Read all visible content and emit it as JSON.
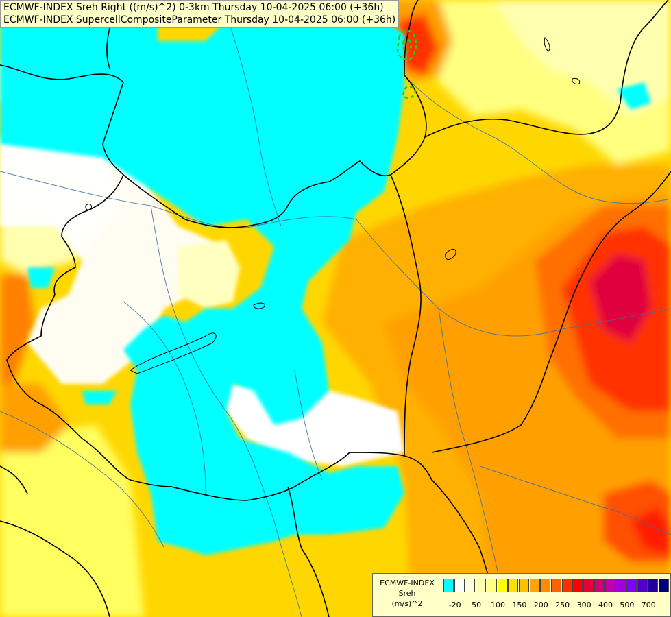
{
  "titles": {
    "line1": "ECMWF-INDEX Sreh Right ((m/s)^2) 0-3km Thursday 10-04-2025 06:00 (+36h)",
    "line2": "ECMWF-INDEX SupercellCompositeParameter Thursday 10-04-2025 06:00 (+36h)"
  },
  "legend": {
    "source": "ECMWF-INDEX",
    "variable": "Sreh",
    "unit": "(m/s)^2",
    "swatch_colors": [
      "#00ffff",
      "#ffffff",
      "#ffffe0",
      "#ffffb0",
      "#ffff80",
      "#ffff00",
      "#ffe000",
      "#ffc000",
      "#ffa500",
      "#ff8c00",
      "#ff6000",
      "#ff3000",
      "#ff0000",
      "#e8003c",
      "#d0007a",
      "#c000b0",
      "#a000e0",
      "#8000ff",
      "#5000c8",
      "#2000a0",
      "#000080"
    ],
    "tick_labels": [
      "-20",
      "50",
      "100",
      "150",
      "200",
      "250",
      "300",
      "400",
      "500",
      "700"
    ]
  },
  "colors": {
    "background": "#ffd700",
    "cyan": "#00ffff",
    "white": "#ffffff",
    "border": "#000000",
    "river": "#3a6ea5",
    "supercell_contour": "#22cc22"
  }
}
